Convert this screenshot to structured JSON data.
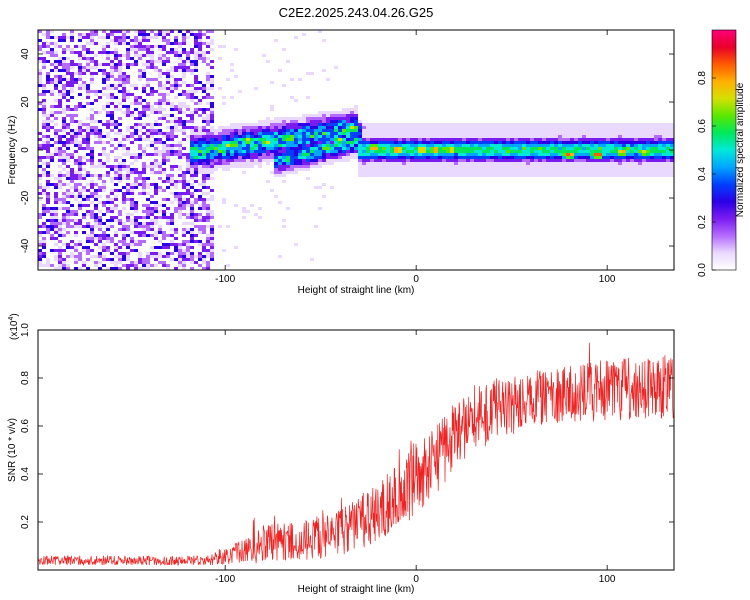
{
  "title": "C2E2.2025.243.04.26.G25",
  "charts": [
    {
      "type": "heatmap",
      "xlabel": "Height of straight line (km)",
      "ylabel": "Frequency (Hz)",
      "xlim": [
        -198,
        135
      ],
      "ylim": [
        -50,
        50
      ],
      "xticks": [
        -100,
        0,
        100
      ],
      "xtick_labels": [
        "-100",
        "0",
        "100"
      ],
      "yticks": [
        -40,
        -20,
        0,
        20,
        40
      ],
      "ytick_labels": [
        "-40",
        "-20",
        "0",
        "20",
        "40"
      ],
      "colorbar": {
        "label": "Normalized spectral amplitude",
        "range": [
          0,
          1
        ],
        "ticks": [
          0.0,
          0.2,
          0.4,
          0.6,
          0.8
        ],
        "tick_labels": [
          "0.0",
          "0.2",
          "0.4",
          "0.6",
          "0.8"
        ],
        "colors": [
          "#ffffff",
          "#ead9ff",
          "#b56bff",
          "#7a1cf0",
          "#2a00e6",
          "#0040ff",
          "#00a6ff",
          "#00e8d8",
          "#00e85a",
          "#5ae800",
          "#d6e000",
          "#ffb000",
          "#ff5a00",
          "#e8002a",
          "#ff007a"
        ]
      },
      "regions": [
        {
          "name": "noise",
          "x": [
            -198,
            -105
          ],
          "y": [
            -50,
            50
          ],
          "density": 0.65,
          "strength": 0.22
        },
        {
          "name": "sparse-noise",
          "x": [
            -105,
            -40
          ],
          "y": [
            -50,
            50
          ],
          "density": 0.06,
          "strength": 0.1
        },
        {
          "name": "rising-track",
          "x": [
            -118,
            -30
          ],
          "y_start": -1,
          "y_end": 9,
          "width": 4,
          "strength": 0.55
        },
        {
          "name": "lower-track",
          "x": [
            -75,
            -28
          ],
          "y_start": -5,
          "y_end": 4,
          "width": 3,
          "strength": 0.5
        },
        {
          "name": "main-band",
          "x": [
            -30,
            135
          ],
          "center": 0,
          "width": 3,
          "strength": 0.55
        }
      ],
      "peaks": [
        {
          "x": -98,
          "y": 2,
          "v": 0.7
        },
        {
          "x": -88,
          "y": 4,
          "v": 0.75
        },
        {
          "x": -78,
          "y": 3,
          "v": 0.72
        },
        {
          "x": -68,
          "y": -4,
          "v": 0.6
        },
        {
          "x": -58,
          "y": -2,
          "v": 0.62
        },
        {
          "x": -47,
          "y": 1,
          "v": 0.7
        },
        {
          "x": -40,
          "y": 4,
          "v": 0.72
        },
        {
          "x": -33,
          "y": 9,
          "v": 0.75
        },
        {
          "x": -22,
          "y": 1,
          "v": 0.85
        },
        {
          "x": -10,
          "y": 0,
          "v": 0.88
        },
        {
          "x": 3,
          "y": 0,
          "v": 0.85
        },
        {
          "x": 10,
          "y": 0,
          "v": 0.85
        },
        {
          "x": 18,
          "y": 0,
          "v": 0.82
        },
        {
          "x": 80,
          "y": -2,
          "v": 0.9
        },
        {
          "x": 95,
          "y": -2,
          "v": 0.93
        },
        {
          "x": 108,
          "y": -1,
          "v": 0.82
        },
        {
          "x": 120,
          "y": -1,
          "v": 0.78
        }
      ]
    },
    {
      "type": "line",
      "xlabel": "Height of straight line (km)",
      "ylabel": "SNR (10 * v/v)",
      "scale_note": "(x10",
      "scale_exp": "4",
      "scale_close": ")",
      "xlim": [
        -198,
        135
      ],
      "ylim": [
        0,
        1.0
      ],
      "xticks": [
        -100,
        0,
        100
      ],
      "xtick_labels": [
        "-100",
        "0",
        "100"
      ],
      "yticks": [
        0.2,
        0.4,
        0.6,
        0.8,
        1.0
      ],
      "ytick_labels": [
        "0.2",
        "0.4",
        "0.6",
        "0.8",
        "1.0"
      ],
      "line_color": "#ee2222",
      "envelope": {
        "x": [
          -198,
          -150,
          -110,
          -95,
          -80,
          -60,
          -40,
          -25,
          -10,
          0,
          10,
          20,
          30,
          45,
          60,
          80,
          100,
          120,
          135
        ],
        "mean": [
          0.04,
          0.04,
          0.04,
          0.07,
          0.11,
          0.12,
          0.15,
          0.22,
          0.3,
          0.38,
          0.45,
          0.55,
          0.63,
          0.68,
          0.71,
          0.73,
          0.75,
          0.76,
          0.76
        ],
        "spread": [
          0.02,
          0.02,
          0.02,
          0.05,
          0.08,
          0.08,
          0.1,
          0.12,
          0.14,
          0.15,
          0.15,
          0.15,
          0.14,
          0.13,
          0.12,
          0.12,
          0.13,
          0.13,
          0.13
        ]
      }
    }
  ]
}
